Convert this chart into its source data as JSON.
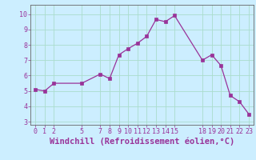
{
  "x": [
    0,
    1,
    2,
    5,
    7,
    8,
    9,
    10,
    11,
    12,
    13,
    14,
    15,
    18,
    19,
    20,
    21,
    22,
    23
  ],
  "y": [
    5.1,
    5.0,
    5.5,
    5.5,
    6.1,
    5.8,
    7.35,
    7.75,
    8.1,
    8.55,
    9.65,
    9.5,
    9.9,
    7.0,
    7.35,
    6.65,
    4.7,
    4.3,
    3.5
  ],
  "line_color": "#993399",
  "marker_color": "#993399",
  "bg_color": "#cceeff",
  "grid_color": "#aaddcc",
  "xlabel": "Windchill (Refroidissement éolien,°C)",
  "xlabel_color": "#993399",
  "ylim": [
    2.8,
    10.6
  ],
  "xlim": [
    -0.5,
    23.5
  ],
  "yticks": [
    3,
    4,
    5,
    6,
    7,
    8,
    9,
    10
  ],
  "xticks": [
    0,
    1,
    2,
    5,
    7,
    8,
    9,
    10,
    11,
    12,
    13,
    14,
    15,
    18,
    19,
    20,
    21,
    22,
    23
  ],
  "tick_color": "#993399",
  "tick_fontsize": 6.0,
  "xlabel_fontsize": 7.5,
  "spine_color": "#666666"
}
